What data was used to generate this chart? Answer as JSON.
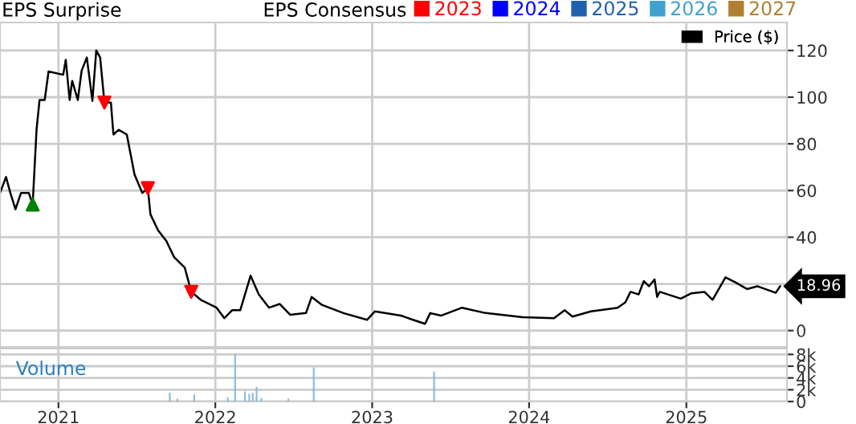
{
  "chart_data": [
    {
      "type": "line",
      "title": "EPS Surprise",
      "legend_title": "EPS Consensus",
      "legend": "top right",
      "grid": true,
      "tick_labels": "y",
      "xlim": [
        "2020-08-18",
        "2025-08-23"
      ],
      "xticks": [
        {
          "value": "2021-01-01",
          "label": null
        },
        {
          "value": "2022-01-01",
          "label": null
        },
        {
          "value": "2023-01-01",
          "label": null
        },
        {
          "value": "2024-01-01",
          "label": null
        },
        {
          "value": "2025-01-01",
          "label": null
        }
      ],
      "ylim": [
        -7,
        132
      ],
      "yticks": [
        0,
        {
          "value": 20,
          "label": null
        },
        40,
        60,
        80,
        100,
        120
      ],
      "series": [
        {
          "name": "Price ($)",
          "color": "#000000",
          "x": [
            "2020-08-18",
            "2020-09-01",
            "2020-09-11",
            "2020-09-23",
            "2020-10-06",
            "2020-10-24",
            "2020-11-02",
            "2020-11-11",
            "2020-11-18",
            "2020-11-30",
            "2020-12-09",
            "2021-01-12",
            "2021-01-18",
            "2021-01-27",
            "2021-02-02",
            "2021-02-15",
            "2021-02-24",
            "2021-03-08",
            "2021-03-21",
            "2021-03-30",
            "2021-04-08",
            "2021-04-18",
            "2021-05-03",
            "2021-05-09",
            "2021-05-21",
            "2021-06-09",
            "2021-06-27",
            "2021-07-15",
            "2021-07-28",
            "2021-08-03",
            "2021-08-21",
            "2021-09-09",
            "2021-09-27",
            "2021-10-22",
            "2021-11-06",
            "2021-11-28",
            "2022-01-04",
            "2022-01-22",
            "2022-02-09",
            "2022-02-28",
            "2022-03-24",
            "2022-04-12",
            "2022-05-06",
            "2022-05-31",
            "2022-06-24",
            "2022-07-31",
            "2022-08-13",
            "2022-09-06",
            "2022-10-26",
            "2022-12-20",
            "2023-01-07",
            "2023-03-09",
            "2023-04-03",
            "2023-05-04",
            "2023-05-16",
            "2023-06-10",
            "2023-07-29",
            "2023-09-22",
            "2023-12-17",
            "2024-02-28",
            "2024-03-24",
            "2024-04-11",
            "2024-05-24",
            "2024-07-25",
            "2024-08-12",
            "2024-08-24",
            "2024-09-12",
            "2024-09-24",
            "2024-10-06",
            "2024-10-19",
            "2024-10-25",
            "2024-10-31",
            "2024-12-19",
            "2025-01-13",
            "2025-02-12",
            "2025-03-03",
            "2025-04-02",
            "2025-04-27",
            "2025-05-22",
            "2025-06-15",
            "2025-07-28",
            "2025-08-07"
          ],
          "values": [
            58.9,
            65.8,
            59,
            52,
            59,
            59,
            54,
            86,
            98.8,
            98.8,
            111,
            109.6,
            116,
            98.8,
            107,
            98.8,
            111.4,
            117,
            98.4,
            120,
            117,
            97.7,
            97.7,
            84,
            86,
            84,
            66.9,
            59,
            61,
            49.8,
            42.9,
            38.4,
            31.5,
            26.9,
            16.6,
            13.2,
            9.8,
            5.3,
            8.7,
            8.7,
            23.5,
            15.5,
            9.8,
            11.4,
            6.8,
            7.5,
            14.4,
            11,
            7.5,
            4.6,
            8.2,
            6.4,
            4.8,
            2.9,
            7.5,
            6.4,
            9.8,
            7.5,
            5.7,
            5.3,
            8.7,
            6,
            8.2,
            9.8,
            12.1,
            16.6,
            15.5,
            21.2,
            19,
            21.9,
            14.4,
            16.6,
            13.7,
            16,
            16.6,
            13.2,
            22.8,
            20.5,
            17.8,
            19,
            16.2,
            18.96
          ],
          "value_labels": [
            null,
            null,
            null,
            null,
            null,
            null,
            null,
            null,
            null,
            null,
            null,
            null,
            null,
            null,
            null,
            null,
            null,
            null,
            null,
            null,
            null,
            null,
            null,
            null,
            null,
            null,
            null,
            null,
            null,
            null,
            null,
            null,
            null,
            null,
            null,
            null,
            null,
            null,
            null,
            null,
            null,
            null,
            null,
            null,
            null,
            null,
            null,
            null,
            null,
            null,
            null,
            null,
            null,
            null,
            null,
            null,
            null,
            null,
            null,
            null,
            null,
            null,
            null,
            null,
            null,
            null,
            null,
            null,
            null,
            null,
            null,
            null,
            null,
            null,
            null,
            null,
            null,
            null,
            null,
            null,
            null,
            "18.96"
          ]
        },
        {
          "type": "scatter",
          "color": "#008000",
          "marker": "triangle",
          "x": [
            "2020-11-02"
          ],
          "values": [
            54
          ]
        },
        {
          "type": "scatter",
          "color": "#ff0000",
          "marker": "triangle_down",
          "x": [
            "2021-04-18",
            "2021-07-28",
            "2021-11-06"
          ],
          "values": [
            97.7,
            61,
            16.6
          ]
        },
        {
          "name": "2023",
          "color": "#ff0000",
          "type": "line"
        },
        {
          "name": "2024",
          "color": "#0000ff",
          "type": "line"
        },
        {
          "name": "2025",
          "color": "#2060b0",
          "type": "line"
        },
        {
          "name": "2026",
          "color": "#40a0d0",
          "type": "line"
        },
        {
          "name": "2027",
          "color": "#b08030",
          "type": "line"
        }
      ]
    },
    {
      "type": "bar",
      "annotations": [
        "Volume"
      ],
      "grid": true,
      "xlim": [
        "2020-08-18",
        "2025-08-23"
      ],
      "xticks": [
        {
          "value": "2021-01-01",
          "label": "2021"
        },
        {
          "value": "2022-01-01",
          "label": "2022"
        },
        {
          "value": "2023-01-01",
          "label": "2023"
        },
        {
          "value": "2024-01-01",
          "label": "2024"
        },
        {
          "value": "2025-01-01",
          "label": "2025"
        }
      ],
      "ylim": [
        0,
        9000
      ],
      "yticks": [
        {
          "value": 0,
          "label": "0"
        },
        {
          "value": 2000,
          "label": "2k"
        },
        {
          "value": 4000,
          "label": "4k"
        },
        {
          "value": 6000,
          "label": "6k"
        },
        {
          "value": 8000,
          "label": "8k"
        }
      ],
      "x": [
        "2021-09-17",
        "2021-10-05",
        "2021-11-13",
        "2022-01-30",
        "2022-02-16",
        "2022-03-11",
        "2022-03-21",
        "2022-03-29",
        "2022-04-07",
        "2022-04-18",
        "2022-06-20",
        "2022-08-18",
        "2023-05-25"
      ],
      "values": [
        1500,
        500,
        1200,
        700,
        8000,
        1700,
        1300,
        1500,
        2500,
        600,
        500,
        5800,
        5100
      ],
      "color": "#88bbdd"
    }
  ]
}
